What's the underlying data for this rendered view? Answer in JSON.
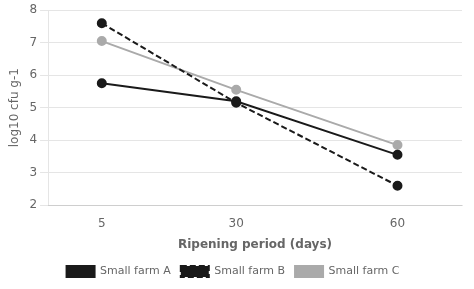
{
  "chart_data": {
    "type": "line",
    "x_label": "Ripening period (days)",
    "y_label": "log10 cfu g-1",
    "x": [
      5,
      30,
      60
    ],
    "series": [
      {
        "name": "Small farm A",
        "color": "#1a1a1a",
        "line_style": "solid",
        "marker": "circle",
        "values": [
          5.75,
          5.2,
          3.55
        ]
      },
      {
        "name": "Small farm B",
        "color": "#1a1a1a",
        "line_style": "dashed",
        "marker": "circle",
        "values": [
          7.6,
          5.15,
          2.6
        ]
      },
      {
        "name": "Small farm C",
        "color": "#aaaaaa",
        "line_style": "solid",
        "marker": "circle",
        "values": [
          7.05,
          5.55,
          3.85
        ]
      }
    ],
    "xlim": [
      -5,
      72
    ],
    "xticks": [
      5,
      30,
      60
    ],
    "ylim": [
      2,
      8
    ],
    "yticks": [
      2,
      3,
      4,
      5,
      6,
      7,
      8
    ],
    "grid": "y",
    "legend": "bottom"
  }
}
